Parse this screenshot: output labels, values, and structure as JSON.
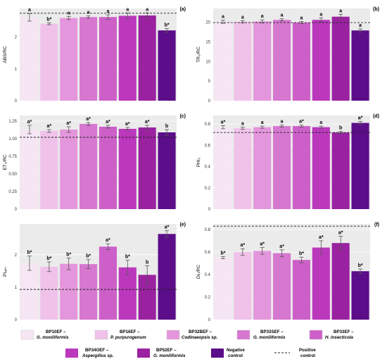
{
  "colors": {
    "panel_bg": "#ebebeb",
    "grid": "#ffffff",
    "error_bar": "#555555",
    "reference_line": "#222222",
    "bars": [
      "#f6e6f4",
      "#f0c2ea",
      "#e496dc",
      "#d677d0",
      "#cd60c8",
      "#bb38bc",
      "#9a22a0",
      "#5c0d8a"
    ]
  },
  "legend": {
    "items": [
      {
        "code": "BP10EF –",
        "species": "G. moniliformis",
        "italic": true
      },
      {
        "code": "BP16EF –",
        "species": "P. purpurogenum",
        "italic": true
      },
      {
        "code": "BP32BEF –",
        "species": "Codinaeopsis sp.",
        "italic": true
      },
      {
        "code": "BP33SEF –",
        "species": "G. moniliformis",
        "italic": true
      },
      {
        "code": "BP33EF –",
        "species": "H. insecticola",
        "italic": true
      },
      {
        "code": "BP34OEF –",
        "species": "Aspergillus sp.",
        "italic": true
      },
      {
        "code": "BP52EF –",
        "species": "G. moniliformis",
        "italic": true
      },
      {
        "code": "Negative",
        "species": "control",
        "italic": false
      }
    ],
    "reference": {
      "line1": "Positive",
      "line2": "control"
    }
  },
  "chart_data": [
    {
      "type": "bar",
      "panel": "(a)",
      "ylabel": "ABS/RC",
      "ylim": [
        0,
        2.9
      ],
      "yticks": [
        0,
        1,
        2
      ],
      "values": [
        2.62,
        2.42,
        2.6,
        2.63,
        2.63,
        2.67,
        2.68,
        2.21
      ],
      "errors": [
        0.12,
        0.03,
        0.05,
        0.04,
        0.07,
        0.09,
        0.08,
        0.06
      ],
      "labels": [
        "a",
        "b*",
        "a",
        "a",
        "a",
        "a",
        "a",
        "b*"
      ],
      "reference": 2.75
    },
    {
      "type": "bar",
      "panel": "(b)",
      "ylabel": "TR₀/RC",
      "ylim": [
        0,
        23.5
      ],
      "yticks": [
        0,
        5,
        10,
        15,
        20
      ],
      "values": [
        20.1,
        20.1,
        20.2,
        20.6,
        19.9,
        20.6,
        21.4,
        17.9
      ],
      "errors": [
        0.4,
        0.3,
        0.4,
        0.3,
        0.3,
        0.5,
        0.6,
        0.4
      ],
      "labels": [
        "a",
        "a",
        "a",
        "a",
        "a",
        "a",
        "a",
        "a"
      ],
      "reference": 19.9
    },
    {
      "type": "bar",
      "panel": "(c)",
      "ylabel": "ET₀/RC",
      "ylim": [
        0,
        1.33
      ],
      "yticks": [
        0,
        0.25,
        0.5,
        0.75,
        1.0,
        1.25
      ],
      "ytick_labels": [
        "0",
        "0.25",
        "0.50",
        "0.75",
        "1.00",
        "1.25"
      ],
      "values": [
        1.13,
        1.11,
        1.13,
        1.21,
        1.17,
        1.14,
        1.16,
        1.09
      ],
      "errors": [
        0.06,
        0.02,
        0.04,
        0.02,
        0.02,
        0.02,
        0.03,
        0.04
      ],
      "labels": [
        "a*",
        "a*",
        "a*",
        "a*",
        "a*",
        "a*",
        "a*",
        "b"
      ],
      "reference": 1.02
    },
    {
      "type": "bar",
      "panel": "(d)",
      "ylabel": "PHI₀",
      "ylim": [
        0,
        0.88
      ],
      "yticks": [
        0,
        0.2,
        0.4,
        0.6,
        0.8
      ],
      "ytick_labels": [
        "0",
        "0.2",
        "0.4",
        "0.6",
        "0.8"
      ],
      "values": [
        0.77,
        0.76,
        0.77,
        0.78,
        0.78,
        0.77,
        0.72,
        0.81
      ],
      "errors": [
        0.015,
        0.01,
        0.01,
        0.01,
        0.01,
        0.01,
        0.01,
        0.015
      ],
      "labels": [
        "a*",
        "a",
        "a",
        "a",
        "a*",
        "a",
        "b",
        "a*"
      ],
      "reference": 0.72
    },
    {
      "type": "bar",
      "panel": "(e)",
      "ylabel": "PIₐₕₛ",
      "ylim": [
        0,
        2.95
      ],
      "yticks": [
        0,
        1,
        2
      ],
      "values": [
        1.74,
        1.63,
        1.72,
        1.71,
        2.25,
        1.61,
        1.38,
        2.64
      ],
      "errors": [
        0.22,
        0.15,
        0.18,
        0.14,
        0.09,
        0.22,
        0.28,
        0.1
      ],
      "labels": [
        "b*",
        "b*",
        "b*",
        "b*",
        "a*",
        "b*",
        "b",
        "a*"
      ],
      "reference": 0.93
    },
    {
      "type": "bar",
      "panel": "(f)",
      "ylabel": "Di₀/RC",
      "ylim": [
        0,
        0.85
      ],
      "yticks": [
        0,
        0.2,
        0.4,
        0.6,
        0.8
      ],
      "ytick_labels": [
        "0",
        "0.2",
        "0.4",
        "0.6",
        "0.8"
      ],
      "values": [
        0.55,
        0.6,
        0.61,
        0.59,
        0.53,
        0.64,
        0.68,
        0.43
      ],
      "errors": [
        0.01,
        0.03,
        0.03,
        0.03,
        0.025,
        0.06,
        0.06,
        0.02
      ],
      "labels": [
        "b*",
        "a*",
        "a*",
        "a*",
        "b*",
        "a*",
        "a*",
        "b*"
      ],
      "reference": 0.83
    }
  ]
}
